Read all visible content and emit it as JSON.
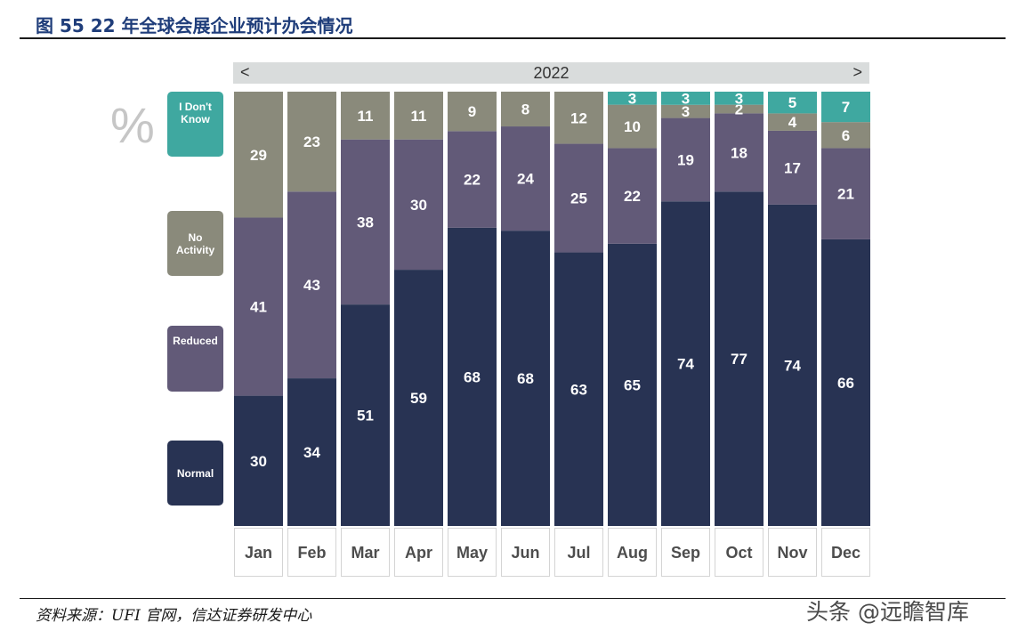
{
  "figure_title": "图 55  22 年全球会展企业预计办会情况",
  "source": "资料来源：UFI 官网，信达证券研发中心",
  "watermark": "头条 @远瞻智库",
  "year_selector": {
    "label": "2022",
    "prev": "<",
    "next": ">"
  },
  "unit_symbol": "%",
  "colors": {
    "normal": "#283353",
    "reduced": "#625a78",
    "no_activity": "#8a8a7b",
    "dont_know": "#3fa8a0",
    "month_box_border": "#d4d4d4"
  },
  "legend": [
    {
      "key": "dont_know",
      "label": "I Don't Know"
    },
    {
      "key": "no_activity",
      "label": "No Activity"
    },
    {
      "key": "reduced",
      "label": "Reduced"
    },
    {
      "key": "normal",
      "label": "Normal"
    }
  ],
  "chart_data": {
    "type": "bar",
    "stacked": true,
    "categories": [
      "Jan",
      "Feb",
      "Mar",
      "Apr",
      "May",
      "Jun",
      "Jul",
      "Aug",
      "Sep",
      "Oct",
      "Nov",
      "Dec"
    ],
    "ylim": [
      0,
      100
    ],
    "series": [
      {
        "name": "Normal",
        "values": [
          30,
          34,
          51,
          59,
          68,
          68,
          63,
          65,
          74,
          77,
          74,
          66
        ]
      },
      {
        "name": "Reduced",
        "values": [
          41,
          43,
          38,
          30,
          22,
          24,
          25,
          22,
          19,
          18,
          17,
          21
        ]
      },
      {
        "name": "No Activity",
        "values": [
          29,
          23,
          11,
          11,
          9,
          8,
          12,
          10,
          3,
          2,
          4,
          6
        ]
      },
      {
        "name": "I Don't Know",
        "values": [
          null,
          null,
          null,
          null,
          null,
          null,
          null,
          3,
          3,
          3,
          5,
          7
        ]
      }
    ]
  }
}
